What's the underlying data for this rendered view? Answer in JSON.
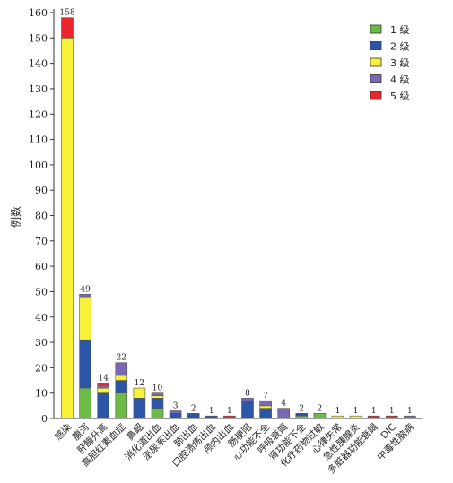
{
  "chart_data": {
    "type": "bar",
    "stacked": true,
    "ylabel": "例数",
    "xlabel": "",
    "ylim": [
      0,
      160
    ],
    "yticks": [
      0,
      10,
      20,
      30,
      40,
      50,
      60,
      70,
      80,
      90,
      100,
      110,
      120,
      130,
      140,
      150,
      160
    ],
    "legend_position": "top-right",
    "categories": [
      "感染",
      "腹泻",
      "肝酶升高",
      "高胆红素血症",
      "鼻衄",
      "消化道出血",
      "泌尿系出血",
      "肺出血",
      "口腔溃疡出血",
      "颅内出血",
      "肠梗阻",
      "心功能不全",
      "呼吸衰竭",
      "肾功能不全",
      "化疗药物过敏",
      "心律失常",
      "急性胰腺炎",
      "多脏器功能衰竭",
      "DIC",
      "中毒性脑病"
    ],
    "totals": [
      158,
      49,
      14,
      22,
      12,
      10,
      3,
      2,
      1,
      1,
      8,
      7,
      4,
      2,
      2,
      1,
      1,
      1,
      1,
      1
    ],
    "series": [
      {
        "name": "1 级",
        "color": "#6cbb47",
        "values": [
          0,
          12,
          0,
          10,
          0,
          4,
          0,
          0,
          0,
          0,
          0,
          0,
          0,
          1,
          2,
          0,
          0,
          0,
          0,
          0
        ]
      },
      {
        "name": "2 级",
        "color": "#2c55a8",
        "values": [
          0,
          19,
          10,
          5,
          8,
          4,
          2,
          2,
          1,
          0,
          7,
          4,
          0,
          1,
          0,
          0,
          0,
          0,
          0,
          0
        ]
      },
      {
        "name": "3 级",
        "color": "#f7f13a",
        "values": [
          150,
          17,
          2,
          2,
          4,
          1,
          0,
          0,
          0,
          0,
          0,
          1,
          0,
          0,
          0,
          1,
          1,
          0,
          0,
          0
        ]
      },
      {
        "name": "4 级",
        "color": "#7b68b5",
        "values": [
          0,
          1,
          1,
          5,
          0,
          1,
          1,
          0,
          0,
          0,
          1,
          2,
          4,
          0,
          0,
          0,
          0,
          0,
          0,
          1
        ]
      },
      {
        "name": "5 级",
        "color": "#e8262b",
        "values": [
          8,
          0,
          1,
          0,
          0,
          0,
          0,
          0,
          0,
          1,
          0,
          0,
          0,
          0,
          0,
          0,
          0,
          1,
          1,
          0
        ]
      }
    ]
  }
}
